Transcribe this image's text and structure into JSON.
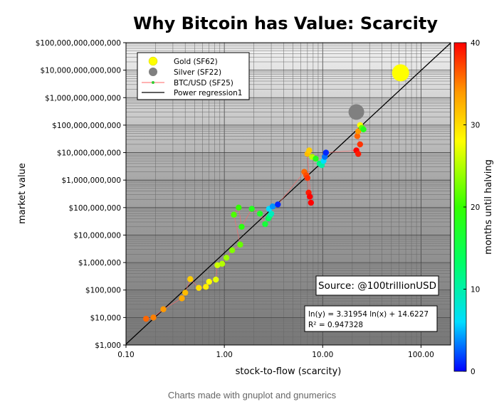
{
  "caption": "Charts made with gnuplot and gnumerics",
  "chart_data": {
    "type": "scatter",
    "title": "Why Bitcoin has Value: Scarcity",
    "xlabel": "stock-to-flow (scarcity)",
    "ylabel": "market value",
    "xscale": "log",
    "yscale": "log",
    "xlim": [
      0.1,
      200
    ],
    "ylim": [
      1000,
      100000000000000
    ],
    "x_ticks": [
      {
        "value": 0.1,
        "label": "0.10"
      },
      {
        "value": 1,
        "label": "1.00"
      },
      {
        "value": 10,
        "label": "10.00"
      },
      {
        "value": 100,
        "label": "100.00"
      }
    ],
    "y_ticks": [
      {
        "value": 1000,
        "label": "$1,000"
      },
      {
        "value": 10000,
        "label": "$10,000"
      },
      {
        "value": 100000,
        "label": "$100,000"
      },
      {
        "value": 1000000,
        "label": "$1,000,000"
      },
      {
        "value": 10000000,
        "label": "$10,000,000"
      },
      {
        "value": 100000000,
        "label": "$100,000,000"
      },
      {
        "value": 1000000000,
        "label": "$1,000,000,000"
      },
      {
        "value": 10000000000,
        "label": "$10,000,000,000"
      },
      {
        "value": 100000000000,
        "label": "$100,000,000,000"
      },
      {
        "value": 1000000000000,
        "label": "$1,000,000,000,000"
      },
      {
        "value": 10000000000000,
        "label": "$10,000,000,000,000"
      },
      {
        "value": 100000000000000,
        "label": "$100,000,000,000,000"
      }
    ],
    "legend": {
      "placement": "top-left",
      "entries": [
        {
          "label": "Gold (SF62)",
          "marker": "large-circle",
          "color": "#ffff00"
        },
        {
          "label": "Silver (SF22)",
          "marker": "large-circle",
          "color": "#808080"
        },
        {
          "label": "BTC/USD (SF25)",
          "marker": "line-dot",
          "color": "#33cc33"
        },
        {
          "label": "Power regression1",
          "marker": "line",
          "color": "#000000"
        }
      ]
    },
    "series": [
      {
        "name": "Gold (SF62)",
        "points": [
          {
            "x": 62,
            "y": 8000000000000
          }
        ],
        "color": "#ffff00"
      },
      {
        "name": "Silver (SF22)",
        "points": [
          {
            "x": 22,
            "y": 300000000000
          }
        ],
        "color": "#808080"
      },
      {
        "name": "BTC/USD (SF25)",
        "colored_by": "months until halving",
        "points": [
          {
            "x": 0.16,
            "y": 9000,
            "m": 36
          },
          {
            "x": 0.19,
            "y": 10000,
            "m": 35
          },
          {
            "x": 0.24,
            "y": 20000,
            "m": 34
          },
          {
            "x": 0.37,
            "y": 50000,
            "m": 33
          },
          {
            "x": 0.4,
            "y": 80000,
            "m": 32
          },
          {
            "x": 0.45,
            "y": 250000,
            "m": 31
          },
          {
            "x": 0.55,
            "y": 120000,
            "m": 30
          },
          {
            "x": 0.65,
            "y": 130000,
            "m": 29
          },
          {
            "x": 0.7,
            "y": 200000,
            "m": 28
          },
          {
            "x": 0.82,
            "y": 240000,
            "m": 27
          },
          {
            "x": 0.85,
            "y": 800000,
            "m": 26
          },
          {
            "x": 0.95,
            "y": 900000,
            "m": 25
          },
          {
            "x": 1.05,
            "y": 1500000,
            "m": 24
          },
          {
            "x": 1.2,
            "y": 2800000,
            "m": 23
          },
          {
            "x": 1.45,
            "y": 4500000,
            "m": 22
          },
          {
            "x": 1.25,
            "y": 55000000,
            "m": 21
          },
          {
            "x": 1.4,
            "y": 100000000,
            "m": 20
          },
          {
            "x": 1.5,
            "y": 20000000,
            "m": 19
          },
          {
            "x": 1.9,
            "y": 90000000,
            "m": 18
          },
          {
            "x": 2.3,
            "y": 60000000,
            "m": 17
          },
          {
            "x": 2.6,
            "y": 25000000,
            "m": 16
          },
          {
            "x": 2.8,
            "y": 40000000,
            "m": 14
          },
          {
            "x": 2.9,
            "y": 50000000,
            "m": 12
          },
          {
            "x": 3.0,
            "y": 60000000,
            "m": 9
          },
          {
            "x": 2.85,
            "y": 90000000,
            "m": 6
          },
          {
            "x": 3.1,
            "y": 110000000,
            "m": 4
          },
          {
            "x": 3.5,
            "y": 130000000,
            "m": 1
          },
          {
            "x": 6.5,
            "y": 2000000000,
            "m": 36
          },
          {
            "x": 6.8,
            "y": 1500000000,
            "m": 37
          },
          {
            "x": 7.0,
            "y": 1200000000,
            "m": 38
          },
          {
            "x": 7.2,
            "y": 350000000,
            "m": 39
          },
          {
            "x": 7.4,
            "y": 250000000,
            "m": 40
          },
          {
            "x": 7.6,
            "y": 150000000,
            "m": 40
          },
          {
            "x": 7.0,
            "y": 9000000000,
            "m": 32
          },
          {
            "x": 7.3,
            "y": 12000000000,
            "m": 31
          },
          {
            "x": 7.8,
            "y": 7000000000,
            "m": 25
          },
          {
            "x": 8.5,
            "y": 6000000000,
            "m": 18
          },
          {
            "x": 9.3,
            "y": 4000000000,
            "m": 12
          },
          {
            "x": 9.8,
            "y": 3500000000,
            "m": 10
          },
          {
            "x": 10.2,
            "y": 5000000000,
            "m": 6
          },
          {
            "x": 10.5,
            "y": 7000000000,
            "m": 3
          },
          {
            "x": 10.8,
            "y": 10000000000,
            "m": 1
          },
          {
            "x": 22,
            "y": 12000000000,
            "m": 40
          },
          {
            "x": 23,
            "y": 9000000000,
            "m": 39
          },
          {
            "x": 24,
            "y": 20000000000,
            "m": 38
          },
          {
            "x": 22.5,
            "y": 40000000000,
            "m": 36
          },
          {
            "x": 23,
            "y": 60000000000,
            "m": 34
          },
          {
            "x": 24,
            "y": 100000000000,
            "m": 28
          },
          {
            "x": 25,
            "y": 80000000000,
            "m": 22
          },
          {
            "x": 26,
            "y": 70000000000,
            "m": 18
          }
        ]
      }
    ],
    "regression": {
      "label": "Power regression1",
      "equation": "ln(y) = 3.31954 ln(x) + 14.6227",
      "r2": "R² = 0.947328",
      "slope": 3.31954,
      "intercept": 14.6227
    },
    "annotation": "Source: @100trillionUSD",
    "colorbar": {
      "label": "months until halving",
      "min": 0,
      "max": 40,
      "ticks": [
        0,
        10,
        20,
        30,
        40
      ],
      "tick_labels": [
        "0",
        "10",
        "20",
        "30",
        "40"
      ]
    }
  }
}
